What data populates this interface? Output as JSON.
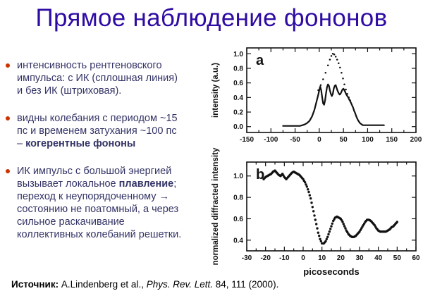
{
  "title": {
    "text": "Прямое наблюдение фононов"
  },
  "colors": {
    "title_color": "#2e0ba3",
    "body_color": "#333366",
    "bullet_color": "#cc3300",
    "ink_color": "#111111"
  },
  "bullets": [
    {
      "seg1": "интенсивность рентгеновского импульса: с ИК (сплошная линия) и без ИК (штриховая).",
      "seg2": "",
      "seg3": ""
    },
    {
      "seg1": "видны колебания с периодом ~15 пс и временем затухания ~100 пс – ",
      "seg2": "когерентные фононы",
      "seg3": ""
    },
    {
      "seg1": "ИК импульс с большой энергией вызывает локальное ",
      "seg2": "плавление",
      "seg3": "; переход к неупорядоченному → состоянию не поатомный, а через сильное раскачивание коллективных колебаний решетки."
    }
  ],
  "source": {
    "label": "Источник:",
    "authors": " A.Lindenberg et al., ",
    "journal": "Phys. Rev. Lett.",
    "rest": " 84, 111 (2000)."
  },
  "chart_data": [
    {
      "id": "a",
      "type": "line",
      "panel_label": "a",
      "title": "",
      "xlabel": "",
      "ylabel": "intensity (a.u.)",
      "xlim": [
        -150,
        200
      ],
      "ylim": [
        -0.08,
        1.08
      ],
      "xticks": [
        -150,
        -100,
        -50,
        0,
        50,
        100,
        150,
        200
      ],
      "yticks": [
        0.0,
        0.2,
        0.4,
        0.6,
        0.8,
        1.0
      ],
      "grid": false,
      "series": [
        {
          "name": "x-ray pulse without IR (dashed)",
          "style": "dots",
          "r": 1.25,
          "points": [
            [
              -2,
              0.5
            ],
            [
              3,
              0.57
            ],
            [
              8,
              0.65
            ],
            [
              13,
              0.74
            ],
            [
              18,
              0.84
            ],
            [
              22,
              0.92
            ],
            [
              25,
              0.97
            ],
            [
              28,
              1.0
            ],
            [
              31,
              0.99
            ],
            [
              34,
              0.96
            ],
            [
              37,
              0.92
            ],
            [
              40,
              0.87
            ],
            [
              43,
              0.81
            ],
            [
              46,
              0.74
            ],
            [
              49,
              0.66
            ],
            [
              52,
              0.58
            ],
            [
              55,
              0.51
            ],
            [
              58,
              0.45
            ],
            [
              61,
              0.4
            ],
            [
              64,
              0.36
            ]
          ]
        },
        {
          "name": "x-ray pulse with IR (solid)",
          "style": "line",
          "points": [
            [
              -75,
              0.01
            ],
            [
              -70,
              0.01
            ],
            [
              -65,
              0.01
            ],
            [
              -60,
              0.01
            ],
            [
              -55,
              0.01
            ],
            [
              -50,
              0.01
            ],
            [
              -45,
              0.01
            ],
            [
              -40,
              0.01
            ],
            [
              -35,
              0.02
            ],
            [
              -30,
              0.03
            ],
            [
              -25,
              0.05
            ],
            [
              -20,
              0.08
            ],
            [
              -15,
              0.14
            ],
            [
              -10,
              0.23
            ],
            [
              -5,
              0.36
            ],
            [
              -2,
              0.44
            ],
            [
              0,
              0.5
            ],
            [
              2,
              0.55
            ],
            [
              4,
              0.5
            ],
            [
              6,
              0.4
            ],
            [
              8,
              0.32
            ],
            [
              10,
              0.3
            ],
            [
              12,
              0.36
            ],
            [
              14,
              0.46
            ],
            [
              16,
              0.54
            ],
            [
              18,
              0.58
            ],
            [
              20,
              0.56
            ],
            [
              22,
              0.5
            ],
            [
              24,
              0.45
            ],
            [
              26,
              0.42
            ],
            [
              28,
              0.45
            ],
            [
              30,
              0.52
            ],
            [
              32,
              0.56
            ],
            [
              34,
              0.57
            ],
            [
              36,
              0.53
            ],
            [
              38,
              0.49
            ],
            [
              40,
              0.46
            ],
            [
              42,
              0.44
            ],
            [
              44,
              0.45
            ],
            [
              46,
              0.48
            ],
            [
              48,
              0.51
            ],
            [
              50,
              0.52
            ],
            [
              52,
              0.5
            ],
            [
              54,
              0.47
            ],
            [
              56,
              0.44
            ],
            [
              58,
              0.42
            ],
            [
              60,
              0.4
            ],
            [
              62,
              0.37
            ],
            [
              64,
              0.35
            ],
            [
              66,
              0.32
            ],
            [
              68,
              0.29
            ],
            [
              70,
              0.26
            ],
            [
              72,
              0.22
            ],
            [
              74,
              0.19
            ],
            [
              76,
              0.15
            ],
            [
              78,
              0.12
            ],
            [
              80,
              0.09
            ],
            [
              82,
              0.07
            ],
            [
              84,
              0.05
            ],
            [
              86,
              0.04
            ],
            [
              88,
              0.03
            ],
            [
              90,
              0.02
            ],
            [
              95,
              0.02
            ],
            [
              100,
              0.02
            ],
            [
              105,
              0.02
            ],
            [
              110,
              0.02
            ],
            [
              115,
              0.02
            ],
            [
              120,
              0.02
            ],
            [
              125,
              0.02
            ],
            [
              130,
              0.02
            ],
            [
              134,
              0.02
            ]
          ]
        }
      ]
    },
    {
      "id": "b",
      "type": "scatter",
      "panel_label": "b",
      "title": "",
      "xlabel": "picoseconds",
      "ylabel": "normalized diffracted intensity",
      "xlim": [
        -30,
        60
      ],
      "ylim": [
        0.3,
        1.13
      ],
      "xticks": [
        -30,
        -20,
        -10,
        0,
        10,
        20,
        30,
        40,
        50,
        60
      ],
      "yticks": [
        0.4,
        0.6,
        0.8,
        1.0
      ],
      "grid": false,
      "series": [
        {
          "name": "diffracted intensity",
          "style": "dots",
          "r": 1.7,
          "dense": true,
          "points": [
            [
              -21,
              0.97
            ],
            [
              -20,
              0.99
            ],
            [
              -19,
              1.0
            ],
            [
              -18,
              1.01
            ],
            [
              -17,
              1.02
            ],
            [
              -16,
              1.04
            ],
            [
              -15,
              1.05
            ],
            [
              -14,
              1.03
            ],
            [
              -13,
              1.01
            ],
            [
              -12,
              1.0
            ],
            [
              -11,
              1.02
            ],
            [
              -10,
              0.99
            ],
            [
              -9,
              0.97
            ],
            [
              -8,
              0.99
            ],
            [
              -7,
              1.01
            ],
            [
              -6,
              1.03
            ],
            [
              -5,
              1.04
            ],
            [
              -4,
              1.03
            ],
            [
              -3,
              1.02
            ],
            [
              -2,
              1.01
            ],
            [
              -1,
              0.99
            ],
            [
              0,
              0.97
            ],
            [
              1,
              0.94
            ],
            [
              2,
              0.9
            ],
            [
              3,
              0.85
            ],
            [
              4,
              0.79
            ],
            [
              5,
              0.71
            ],
            [
              6,
              0.63
            ],
            [
              7,
              0.55
            ],
            [
              8,
              0.47
            ],
            [
              9,
              0.41
            ],
            [
              10,
              0.37
            ],
            [
              11,
              0.37
            ],
            [
              12,
              0.39
            ],
            [
              13,
              0.43
            ],
            [
              14,
              0.48
            ],
            [
              15,
              0.53
            ],
            [
              16,
              0.58
            ],
            [
              17,
              0.61
            ],
            [
              18,
              0.62
            ],
            [
              19,
              0.61
            ],
            [
              20,
              0.6
            ],
            [
              21,
              0.57
            ],
            [
              22,
              0.53
            ],
            [
              23,
              0.49
            ],
            [
              24,
              0.46
            ],
            [
              25,
              0.44
            ],
            [
              26,
              0.43
            ],
            [
              27,
              0.43
            ],
            [
              28,
              0.44
            ],
            [
              29,
              0.46
            ],
            [
              30,
              0.48
            ],
            [
              31,
              0.51
            ],
            [
              32,
              0.54
            ],
            [
              33,
              0.57
            ],
            [
              34,
              0.59
            ],
            [
              35,
              0.59
            ],
            [
              36,
              0.58
            ],
            [
              37,
              0.56
            ],
            [
              38,
              0.54
            ],
            [
              39,
              0.51
            ],
            [
              40,
              0.49
            ],
            [
              41,
              0.48
            ],
            [
              42,
              0.48
            ],
            [
              43,
              0.48
            ],
            [
              44,
              0.48
            ],
            [
              45,
              0.49
            ],
            [
              46,
              0.5
            ],
            [
              47,
              0.52
            ],
            [
              48,
              0.53
            ],
            [
              49,
              0.55
            ],
            [
              50,
              0.57
            ]
          ]
        }
      ]
    }
  ]
}
